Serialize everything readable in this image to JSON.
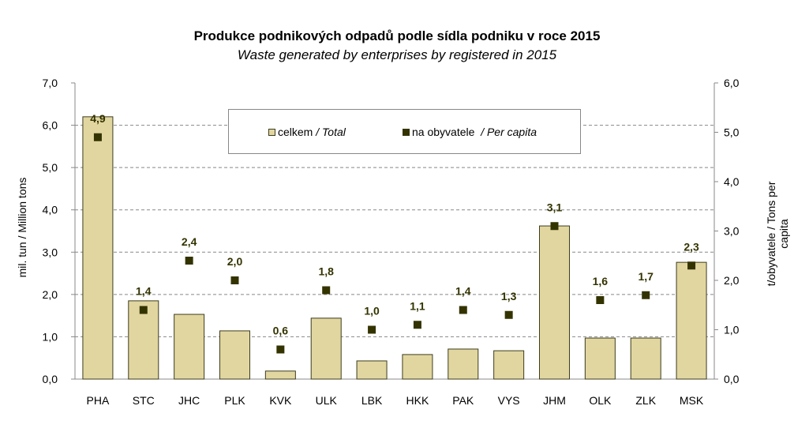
{
  "chart_data": {
    "type": "bar",
    "title": "Produkce podnikových odpadů podle sídla podniku v roce 2015",
    "subtitle": "Waste generated by enterprises by registered in 2015",
    "categories": [
      "PHA",
      "STC",
      "JHC",
      "PLK",
      "KVK",
      "ULK",
      "LBK",
      "HKK",
      "PAK",
      "VYS",
      "JHM",
      "OLK",
      "ZLK",
      "MSK"
    ],
    "series": [
      {
        "name": "celkem / Total",
        "axis": "left",
        "type": "bar",
        "values": [
          6.2,
          1.85,
          1.53,
          1.14,
          0.19,
          1.44,
          0.43,
          0.58,
          0.71,
          0.67,
          3.62,
          0.97,
          0.97,
          2.76
        ]
      },
      {
        "name": "na obyvatele / Per capita",
        "axis": "right",
        "type": "scatter",
        "values": [
          4.9,
          1.4,
          2.4,
          2.0,
          0.6,
          1.8,
          1.0,
          1.1,
          1.4,
          1.3,
          3.1,
          1.6,
          1.7,
          2.3
        ],
        "labels": [
          "4,9",
          "1,4",
          "2,4",
          "2,0",
          "0,6",
          "1,8",
          "1,0",
          "1,1",
          "1,4",
          "1,3",
          "3,1",
          "1,6",
          "1,7",
          "2,3"
        ]
      }
    ],
    "ylabel_left": "mil. tun / Million tons",
    "ylabel_right": "t/obyvatele / Tons per capita",
    "ylim_left": [
      0,
      7
    ],
    "ylim_right": [
      0,
      6
    ],
    "yticks_left": [
      "0,0",
      "1,0",
      "2,0",
      "3,0",
      "4,0",
      "5,0",
      "6,0",
      "7,0"
    ],
    "yticks_right": [
      "0,0",
      "1,0",
      "2,0",
      "3,0",
      "4,0",
      "5,0",
      "6,0"
    ],
    "legend": {
      "total": "celkem",
      "total_en": "/ Total",
      "percap": "na obyvatele",
      "percap_en": "/ Per capita",
      "placement": "top-center"
    },
    "grid": true,
    "colors": {
      "bar": "#E2D6A0",
      "bar_border": "#3C3C1E",
      "marker": "#333300",
      "label": "#333300"
    }
  }
}
